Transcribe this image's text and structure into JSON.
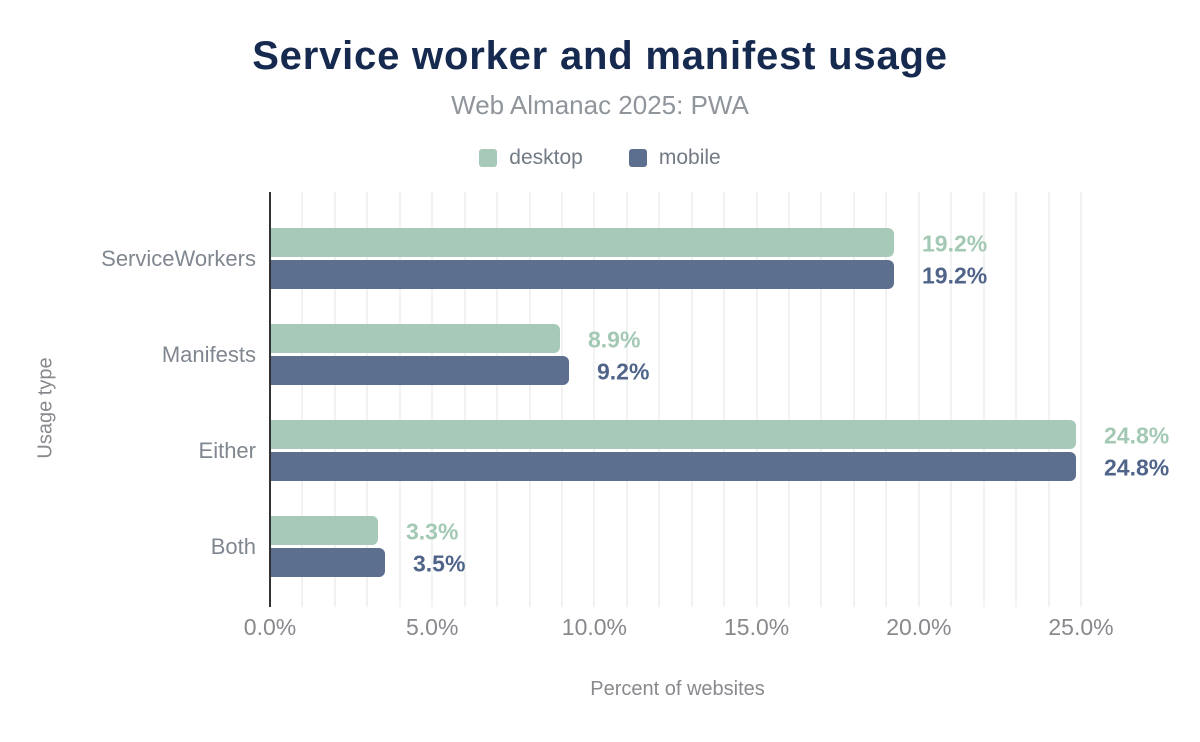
{
  "colors": {
    "background": "#ffffff",
    "title": "#16294f",
    "subtitle": "#8f959b",
    "legend_text": "#727a84",
    "axis_text": "#87898d",
    "category_text": "#808790",
    "axis_line": "#333333",
    "gridline": "#f2f2f3"
  },
  "chart_data": {
    "type": "bar",
    "orientation": "horizontal",
    "title": "Service worker and manifest usage",
    "subtitle": "Web Almanac 2025: PWA",
    "categories": [
      "ServiceWorkers",
      "Manifests",
      "Either",
      "Both"
    ],
    "series": [
      {
        "name": "desktop",
        "color": "#a6cab7",
        "label_color": "#a3c9b4",
        "values": [
          19.2,
          8.9,
          24.8,
          3.3
        ],
        "labels": [
          "19.2%",
          "8.9%",
          "24.8%",
          "3.3%"
        ]
      },
      {
        "name": "mobile",
        "color": "#5d6f8e",
        "label_color": "#50648a",
        "values": [
          19.2,
          9.2,
          24.8,
          3.5
        ],
        "labels": [
          "19.2%",
          "9.2%",
          "24.8%",
          "3.5%"
        ]
      }
    ],
    "xlabel": "Percent of websites",
    "ylabel": "Usage type",
    "x_ticks": [
      {
        "value": 0,
        "label": "0.0%"
      },
      {
        "value": 5,
        "label": "5.0%"
      },
      {
        "value": 10,
        "label": "10.0%"
      },
      {
        "value": 15,
        "label": "15.0%"
      },
      {
        "value": 20,
        "label": "20.0%"
      },
      {
        "value": 25,
        "label": "25.0%"
      }
    ],
    "xlim": [
      0,
      25
    ],
    "grid": {
      "vertical_step_percent": 1,
      "major_step_percent": 5
    },
    "legend_position": "top",
    "value_labels_shown": true
  }
}
